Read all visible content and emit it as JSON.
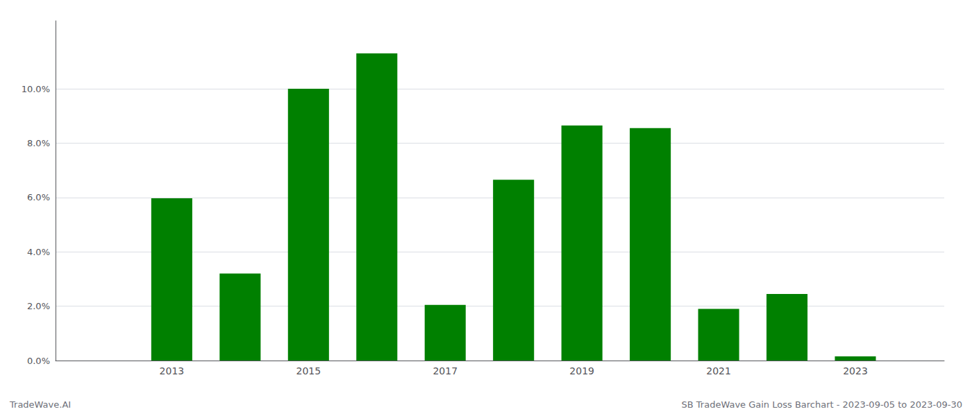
{
  "chart_data": {
    "type": "bar",
    "x": [
      2013,
      2014,
      2015,
      2016,
      2017,
      2018,
      2019,
      2020,
      2021,
      2022,
      2023
    ],
    "values": [
      0.0597,
      0.032,
      0.1,
      0.113,
      0.0205,
      0.0665,
      0.0865,
      0.0855,
      0.019,
      0.0245,
      0.0015
    ],
    "color": "#008000",
    "xlim": [
      2011.3,
      2024.3
    ],
    "xticks": [
      2013,
      2015,
      2017,
      2019,
      2021,
      2023
    ],
    "ylim": [
      0,
      0.125
    ],
    "yticks": [
      {
        "value": 0.0,
        "label": "0.0%"
      },
      {
        "value": 0.02,
        "label": "2.0%"
      },
      {
        "value": 0.04,
        "label": "4.0%"
      },
      {
        "value": 0.06,
        "label": "6.0%"
      },
      {
        "value": 0.08,
        "label": "8.0%"
      },
      {
        "value": 0.1,
        "label": "10.0%"
      }
    ],
    "grid": true,
    "annotations": [
      "TradeWave.AI",
      "SB TradeWave Gain Loss Barchart - 2023-09-05 to 2023-09-30"
    ]
  }
}
